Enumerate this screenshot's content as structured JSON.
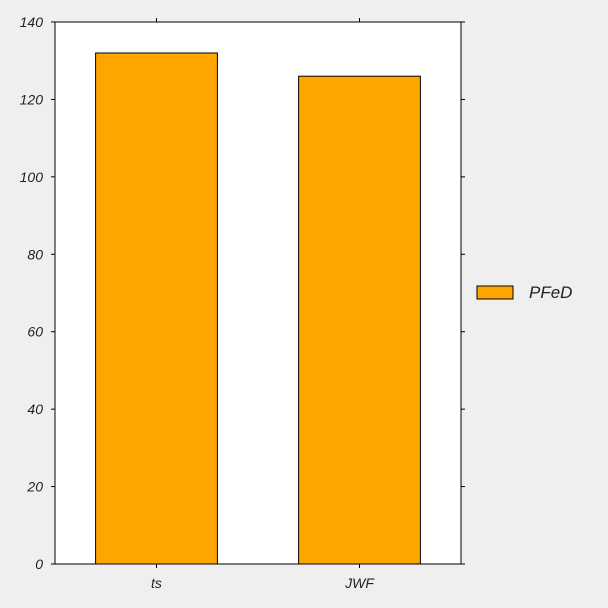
{
  "chart_data": {
    "type": "bar",
    "categories": [
      "ts",
      "JWF"
    ],
    "series": [
      {
        "name": "PFeD",
        "values": [
          132,
          126
        ],
        "color": "#ffa500"
      }
    ],
    "title": "",
    "xlabel": "",
    "ylabel": "",
    "ylim": [
      0,
      140
    ],
    "yticks": [
      0,
      20,
      40,
      60,
      80,
      100,
      120,
      140
    ],
    "grid": false,
    "legend_position": "right",
    "background": "#efefef",
    "plot_background": "#ffffff"
  }
}
